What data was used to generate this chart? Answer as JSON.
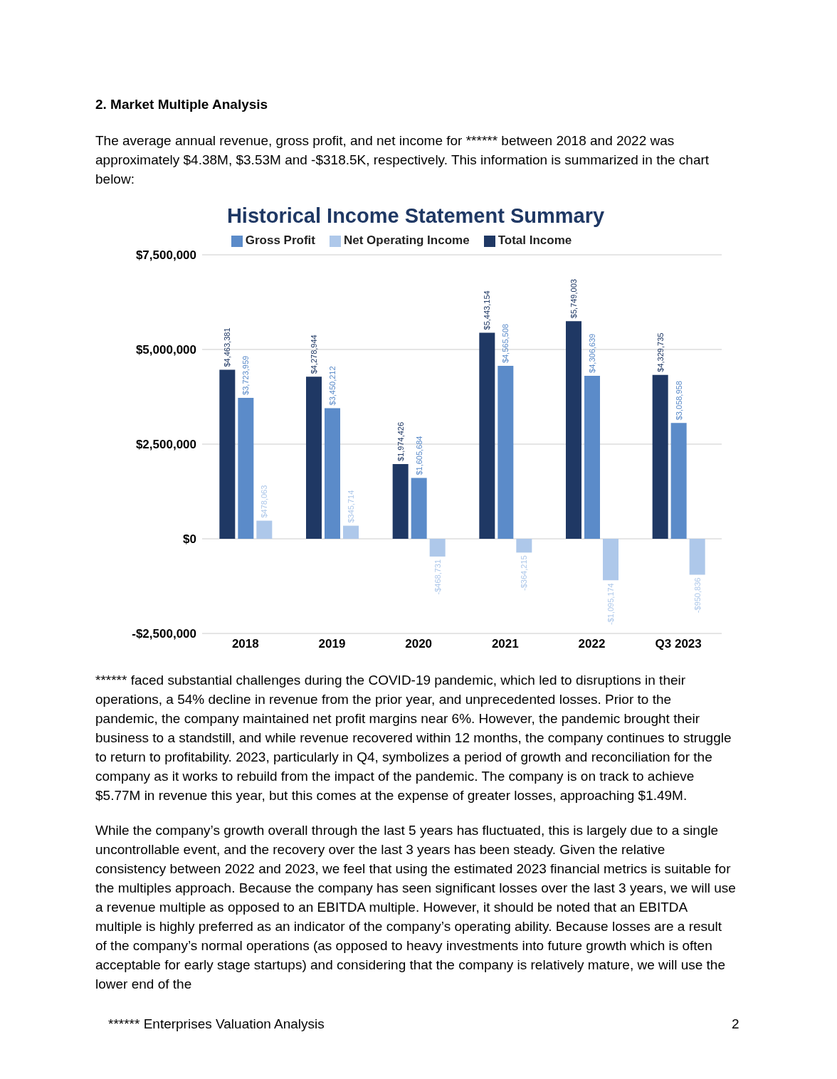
{
  "chart_data": {
    "type": "bar",
    "title": "Historical Income Statement Summary",
    "categories": [
      "2018",
      "2019",
      "2020",
      "2021",
      "2022",
      "Q3 2023"
    ],
    "series": [
      {
        "name": "Total Income",
        "color": "#1f3864",
        "values": [
          4463381,
          4278944,
          1974426,
          5443154,
          5749003,
          4329735
        ],
        "value_labels": [
          "$4,463,381",
          "$4,278,944",
          "$1,974,426",
          "$5,443,154",
          "$5,749,003",
          "$4,329,735"
        ]
      },
      {
        "name": "Gross Profit",
        "color": "#5b8bc9",
        "values": [
          3723959,
          3450212,
          1605684,
          4565508,
          4306639,
          3058958
        ],
        "value_labels": [
          "$3,723,959",
          "$3,450,212",
          "$1,605,684",
          "$4,565,508",
          "$4,306,639",
          "$3,058,958"
        ]
      },
      {
        "name": "Net Operating Income",
        "color": "#aec8ea",
        "values": [
          478063,
          345714,
          -468731,
          -364215,
          -1095174,
          -950836
        ],
        "value_labels": [
          "$478,063",
          "$345,714",
          "-$468,731",
          "-$364,215",
          "-$1,095,174",
          "-$950,836"
        ]
      }
    ],
    "ylim": [
      -2500000,
      7500000
    ],
    "yticks": [
      {
        "value": -2500000,
        "label": "-$2,500,000"
      },
      {
        "value": 0,
        "label": "$0"
      },
      {
        "value": 2500000,
        "label": "$2,500,000"
      },
      {
        "value": 5000000,
        "label": "$5,000,000"
      },
      {
        "value": 7500000,
        "label": "$7,500,000"
      }
    ],
    "grid": "y",
    "legend": "top",
    "annotations": [
      "2.  Market Multiple Analysis",
      "The average annual revenue, gross profit, and net income for ****** between 2018 and 2022 was approximately $4.38M, $3.53M and -$318.5K, respectively. This information is summarized in the chart below:",
      "****** faced substantial challenges during the COVID-19 pandemic, which led to disruptions in their operations, a 54% decline in revenue from the prior year, and unprecedented losses. Prior to the pandemic, the company maintained net profit margins near 6%. However, the pandemic brought their business to a standstill, and while revenue recovered within 12 months, the company continues to struggle to return to profitability. 2023, particularly in Q4, symbolizes a period of growth and reconciliation for the company as it works to rebuild from the impact of the pandemic. The company is on track to achieve $5.77M in revenue this year, but this comes at the expense of greater losses, approaching $1.49M.",
      "While the company’s growth overall through the last 5 years has fluctuated, this is largely due to a single uncontrollable event, and the recovery over the last 3 years has been steady. Given the relative consistency between 2022 and 2023, we feel that using the estimated 2023 financial metrics is suitable for the multiples approach. Because the company has seen significant losses over the last 3 years, we will use a revenue multiple as opposed to an EBITDA multiple. However, it should be noted that an EBITDA multiple is highly preferred as an indicator of the company’s operating ability. Because losses are a result of the company’s normal operations (as opposed to heavy investments into future growth which is often acceptable for early stage startups) and considering that the company is relatively mature, we will use the lower end of the",
      "****** Enterprises Valuation Analysis",
      "2"
    ]
  }
}
